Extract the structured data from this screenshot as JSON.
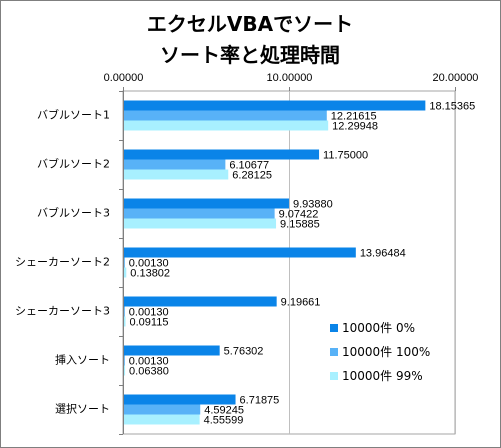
{
  "chart_data": {
    "type": "bar",
    "orientation": "horizontal",
    "title": [
      "エクセルVBAでソート",
      "ソート率と処理時間"
    ],
    "categories": [
      "バブルソート1",
      "バブルソート2",
      "バブルソート3",
      "シェーカーソート2",
      "シェーカーソート3",
      "挿入ソート",
      "選択ソート"
    ],
    "series": [
      {
        "name": "10000件 0%",
        "color": "#0a84e8",
        "values": [
          18.15365,
          11.75,
          9.9388,
          13.96484,
          9.19661,
          5.76302,
          6.71875
        ],
        "labels": [
          "18.15365",
          "11.75000",
          "9.93880",
          "13.96484",
          "9.19661",
          "5.76302",
          "6.71875"
        ]
      },
      {
        "name": "10000件 100%",
        "color": "#58b2f7",
        "values": [
          12.21615,
          6.10677,
          9.07422,
          0.0013,
          0.0013,
          0.0013,
          4.59245
        ],
        "labels": [
          "12.21615",
          "6.10677",
          "9.07422",
          "0.00130",
          "0.00130",
          "0.00130",
          "4.59245"
        ]
      },
      {
        "name": "10000件 99%",
        "color": "#a8f0ff",
        "values": [
          12.29948,
          6.28125,
          9.15885,
          0.13802,
          0.09115,
          0.0638,
          4.55599
        ],
        "labels": [
          "12.29948",
          "6.28125",
          "9.15885",
          "0.13802",
          "0.09115",
          "0.06380",
          "4.55599"
        ]
      }
    ],
    "x_axis": {
      "min": 0,
      "max": 20,
      "position": "top",
      "ticks": [
        0,
        10,
        20
      ],
      "tick_labels": [
        "0.00000",
        "10.00000",
        "20.00000"
      ]
    },
    "grid": true,
    "legend_position": "bottom-right",
    "xlabel": "",
    "ylabel": ""
  }
}
